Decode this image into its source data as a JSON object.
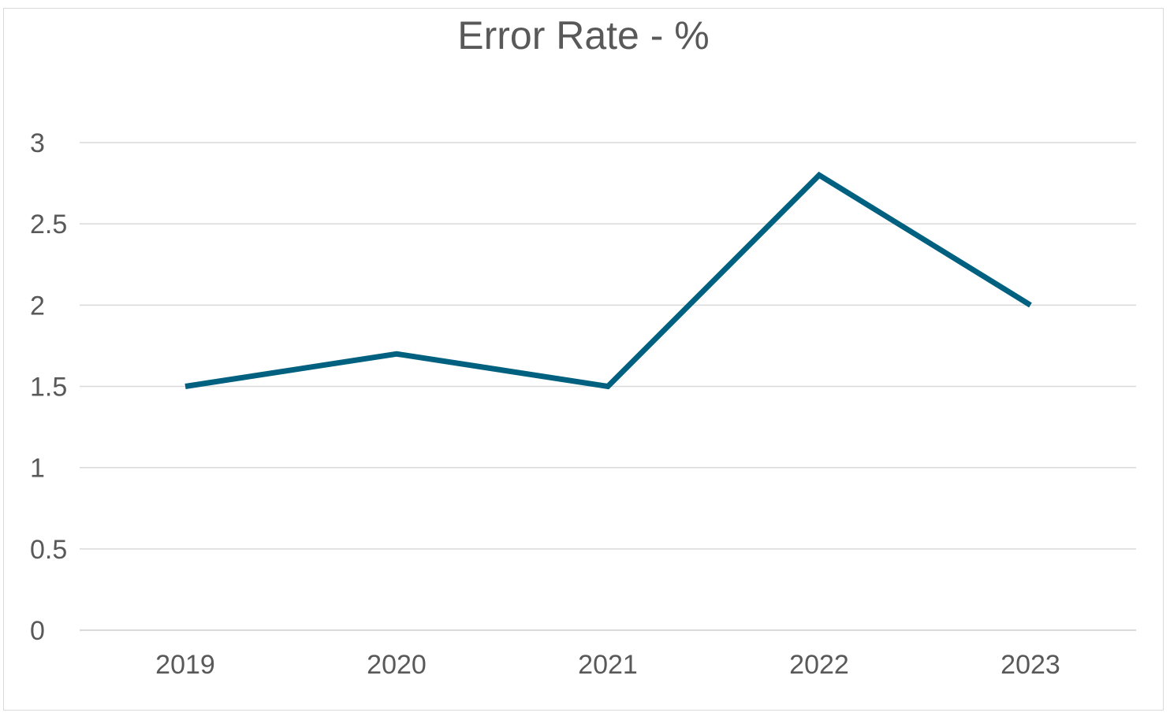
{
  "chart_data": {
    "type": "line",
    "title": "Error Rate - %",
    "xlabel": "",
    "ylabel": "",
    "categories": [
      "2019",
      "2020",
      "2021",
      "2022",
      "2023"
    ],
    "series": [
      {
        "values": [
          1.5,
          1.7,
          1.5,
          2.8,
          2.0
        ],
        "color": "#006080"
      }
    ],
    "ylim": [
      0,
      3
    ],
    "yticks": [
      "0",
      "0.5",
      "1",
      "1.5",
      "2",
      "2.5",
      "3"
    ],
    "grid": true,
    "legend": "none",
    "colors": {
      "gridline": "#d9d9d9",
      "text": "#595959",
      "line": "#006080"
    }
  }
}
